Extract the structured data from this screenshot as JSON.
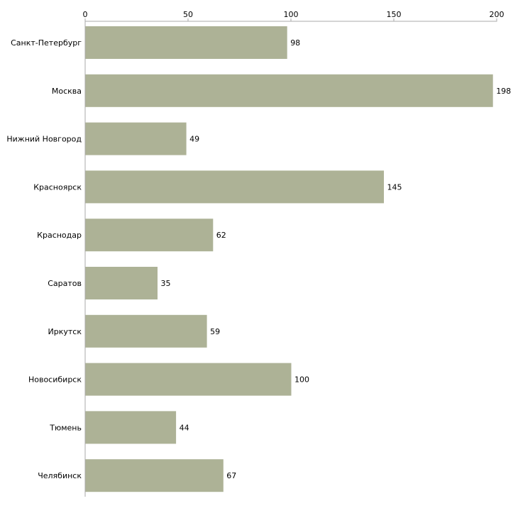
{
  "chart_data": {
    "type": "bar",
    "orientation": "horizontal",
    "title": "",
    "xlabel": "",
    "ylabel": "",
    "xlim": [
      0,
      200
    ],
    "ticks": [
      0,
      50,
      100,
      150,
      200
    ],
    "tick_labels": [
      "0",
      "50",
      "100",
      "150",
      "200"
    ],
    "axis_position": "top",
    "grid": false,
    "legend": "none",
    "categories": [
      "Санкт-Петербург",
      "Москва",
      "Нижний Новгород",
      "Красноярск",
      "Краснодар",
      "Саратов",
      "Иркутск",
      "Новосибирск",
      "Тюмень",
      "Челябинск"
    ],
    "values": [
      98,
      198,
      49,
      145,
      62,
      35,
      59,
      100,
      44,
      67
    ],
    "value_labels": [
      "98",
      "198",
      "49",
      "145",
      "62",
      "35",
      "59",
      "100",
      "44",
      "67"
    ],
    "colors": {
      "bar": "#adb296",
      "axis": "#aaaaaa",
      "text": "#000000"
    }
  }
}
